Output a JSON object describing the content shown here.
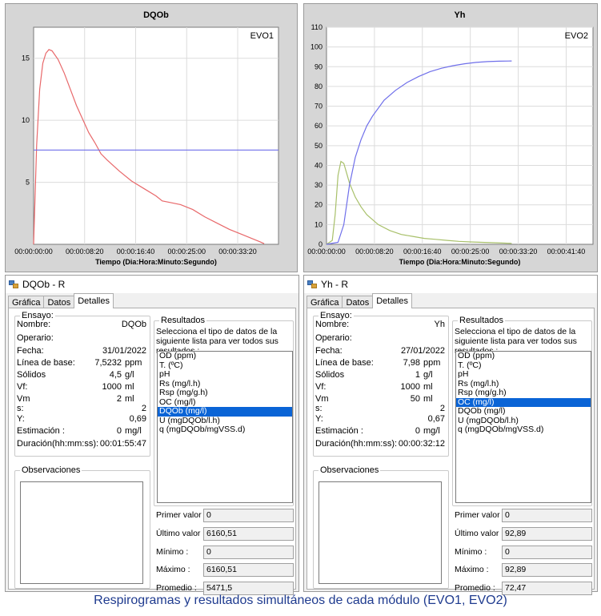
{
  "charts": [
    {
      "title": "DQOb",
      "tag": "EVO1",
      "xlabel": "Tiempo (Dia:Hora:Minuto:Segundo)",
      "x_ticks": [
        "00:00:00:00",
        "00:00:08:20",
        "00:00:16:40",
        "00:00:25:00",
        "00:00:33:20"
      ],
      "y_ticks": [
        "5",
        "10",
        "15"
      ]
    },
    {
      "title": "Yh",
      "tag": "EVO2",
      "xlabel": "Tiempo (Dia:Hora:Minuto:Segundo)",
      "x_ticks": [
        "00:00:00:00",
        "00:00:08:20",
        "00:00:16:40",
        "00:00:25:00",
        "00:00:33:20",
        "00:00:41:40"
      ],
      "y_ticks": [
        "0",
        "10",
        "20",
        "30",
        "40",
        "50",
        "60",
        "70",
        "80",
        "90",
        "100",
        "110"
      ]
    }
  ],
  "chart_data": [
    {
      "type": "line",
      "title": "DQOb",
      "xlabel": "Tiempo (Dia:Hora:Minuto:Segundo)",
      "ylabel": "",
      "x_unit": "seconds",
      "xlim": [
        0,
        2400
      ],
      "ylim": [
        0,
        17.5
      ],
      "series": [
        {
          "color": "#e8686a",
          "x": [
            0,
            30,
            60,
            90,
            120,
            150,
            180,
            240,
            300,
            360,
            420,
            480,
            540,
            600,
            660,
            720,
            840,
            960,
            1080,
            1200,
            1260,
            1320,
            1440,
            1560,
            1680,
            1800,
            1920,
            2040,
            2160,
            2220,
            2260
          ],
          "y": [
            0,
            8,
            12.5,
            14.6,
            15.4,
            15.7,
            15.6,
            14.9,
            13.8,
            12.5,
            11.2,
            10.1,
            9.0,
            8.2,
            7.3,
            6.8,
            5.9,
            5.1,
            4.5,
            3.9,
            3.5,
            3.4,
            3.2,
            2.8,
            2.2,
            1.7,
            1.2,
            0.8,
            0.4,
            0.2,
            0.05
          ]
        },
        {
          "color": "#6f6fea",
          "x": [
            0,
            2400
          ],
          "y": [
            7.6,
            7.6
          ]
        }
      ]
    },
    {
      "type": "line",
      "title": "Yh",
      "xlabel": "Tiempo (Dia:Hora:Minuto:Segundo)",
      "ylabel": "",
      "x_unit": "seconds",
      "xlim": [
        0,
        2780
      ],
      "ylim": [
        0,
        110
      ],
      "series": [
        {
          "color": "#a8c06a",
          "x": [
            0,
            60,
            90,
            120,
            150,
            180,
            210,
            240,
            300,
            360,
            420,
            540,
            660,
            780,
            900,
            1020,
            1140,
            1260,
            1380,
            1500,
            1620,
            1740,
            1860,
            1932
          ],
          "y": [
            0,
            2,
            15,
            35,
            42,
            41,
            36,
            31,
            24,
            19,
            15,
            10,
            7,
            5,
            4,
            3,
            2.5,
            2,
            1.5,
            1.2,
            1,
            0.8,
            0.6,
            0.5
          ]
        },
        {
          "color": "#6f6fea",
          "x": [
            0,
            120,
            180,
            240,
            300,
            360,
            420,
            480,
            600,
            720,
            840,
            960,
            1080,
            1200,
            1320,
            1440,
            1560,
            1680,
            1800,
            1932
          ],
          "y": [
            0,
            1,
            10,
            30,
            44,
            53,
            60,
            65,
            73,
            78,
            82,
            85,
            87.5,
            89.2,
            90.5,
            91.5,
            92.2,
            92.6,
            92.8,
            92.9
          ]
        }
      ]
    }
  ],
  "windows": [
    {
      "title": "DQOb - R",
      "tabs": [
        "Gráfica",
        "Datos",
        "Detalles"
      ],
      "ensayo": {
        "legend": "Ensayo:",
        "fields": [
          {
            "label": "Nombre:",
            "value": "DQOb",
            "unit": ""
          },
          {
            "label": "Operario:",
            "value": "",
            "unit": ""
          },
          {
            "label": "Fecha:",
            "value": "31/01/2022",
            "unit": ""
          },
          {
            "label": "Línea de base:",
            "value": "7,5232",
            "unit": "ppm"
          },
          {
            "label": "Sólidos",
            "value": "4,5",
            "unit": "g/l"
          },
          {
            "label": "Vf:",
            "value": "1000",
            "unit": "ml"
          },
          {
            "label": "Vm",
            "value": "2",
            "unit": "ml"
          },
          {
            "label": "s:",
            "value": "2",
            "unit": ""
          },
          {
            "label": "Y:",
            "value": "0,69",
            "unit": ""
          },
          {
            "label": "Estimación :",
            "value": "0",
            "unit": "mg/l"
          },
          {
            "label": "Duración(hh:mm:ss):",
            "value": "00:01:55:47",
            "unit": ""
          }
        ]
      },
      "observaciones": "Observaciones",
      "resultados": {
        "legend": "Resultados",
        "desc": "Selecciona el tipo de datos de la siguiente lista para ver todos sus resultados :",
        "items": [
          "OD (ppm)",
          "T. (ºC)",
          "pH",
          "Rs (mg/l.h)",
          "Rsp (mg/g.h)",
          "OC (mg/l)",
          "DQOb (mg/l)",
          "U (mgDQOb/l.h)",
          "q (mgDQOb/mgVSS.d)"
        ],
        "selected": 6
      },
      "stats": [
        {
          "label": "Primer valor :",
          "value": "0"
        },
        {
          "label": "Último valor :",
          "value": "6160,51"
        },
        {
          "label": "Mínimo :",
          "value": "0"
        },
        {
          "label": "Máximo :",
          "value": "6160,51"
        },
        {
          "label": "Promedio :",
          "value": "5471,5"
        }
      ]
    },
    {
      "title": "Yh - R",
      "tabs": [
        "Gráfica",
        "Datos",
        "Detalles"
      ],
      "ensayo": {
        "legend": "Ensayo:",
        "fields": [
          {
            "label": "Nombre:",
            "value": "Yh",
            "unit": ""
          },
          {
            "label": "Operario:",
            "value": "",
            "unit": ""
          },
          {
            "label": "Fecha:",
            "value": "27/01/2022",
            "unit": ""
          },
          {
            "label": "Línea de base:",
            "value": "7,98",
            "unit": "ppm"
          },
          {
            "label": "Sólidos",
            "value": "1",
            "unit": "g/l"
          },
          {
            "label": "Vf:",
            "value": "1000",
            "unit": "ml"
          },
          {
            "label": "Vm",
            "value": "50",
            "unit": "ml"
          },
          {
            "label": "s:",
            "value": "2",
            "unit": ""
          },
          {
            "label": "Y:",
            "value": "0,67",
            "unit": ""
          },
          {
            "label": "Estimación :",
            "value": "0",
            "unit": "mg/l"
          },
          {
            "label": "Duración(hh:mm:ss):",
            "value": "00:00:32:12",
            "unit": ""
          }
        ]
      },
      "observaciones": "Observaciones",
      "resultados": {
        "legend": "Resultados",
        "desc": "Selecciona el tipo de datos de la siguiente lista para ver todos sus resultados :",
        "items": [
          "OD (ppm)",
          "T. (ºC)",
          "pH",
          "Rs (mg/l.h)",
          "Rsp (mg/g.h)",
          "OC (mg/l)",
          "DQOb (mg/l)",
          "U (mgDQOb/l.h)",
          "q (mgDQOb/mgVSS.d)"
        ],
        "selected": 5
      },
      "stats": [
        {
          "label": "Primer valor :",
          "value": "0"
        },
        {
          "label": "Último valor :",
          "value": "92,89"
        },
        {
          "label": "Mínimo :",
          "value": "0"
        },
        {
          "label": "Máximo :",
          "value": "92,89"
        },
        {
          "label": "Promedio :",
          "value": "72,47"
        }
      ]
    }
  ],
  "caption": "Respirogramas y resultados simultáneos de cada módulo (EVO1, EVO2)"
}
